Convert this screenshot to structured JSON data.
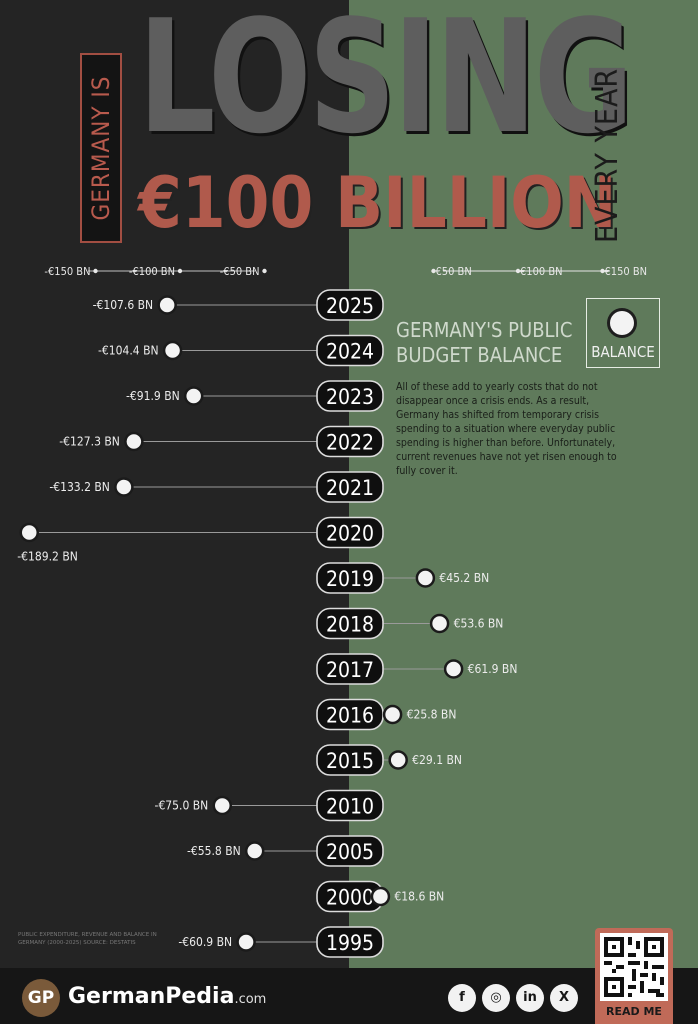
{
  "header": {
    "germany_is": "GERMANY IS",
    "losing": "LOSING",
    "amount": "€100 BILLION",
    "every_year": "EVERY YEAR"
  },
  "panel": {
    "title": "GERMANY'S PUBLIC BUDGET BALANCE",
    "legend_label": "BALANCE",
    "text": "All of these add to yearly costs that do not disappear once a crisis ends. As a result, Germany has shifted from temporary crisis spending to a situation where everyday public spending is higher than before. Unfortunately, current revenues have not yet risen enough to fully cover it."
  },
  "source": {
    "text": "PUBLIC EXPENDITURE, REVENUE AND BALANCE IN GERMANY (2000-2025) SOURCE: DESTATIS"
  },
  "footer": {
    "logo": "GP",
    "brand": "GermanPedia",
    "brand_suffix": ".com",
    "read_me": "READ ME",
    "social": [
      "f",
      "◎",
      "in",
      "X"
    ]
  },
  "colors": {
    "left_bg": "#242424",
    "right_bg": "#5f7a5b",
    "accent_red": "#b05a4c",
    "dot": "#f3f3f3"
  },
  "chart_data": {
    "type": "dot",
    "title": "GERMANY'S PUBLIC BUDGET BALANCE",
    "axis_ticks": [
      -150,
      -100,
      -50,
      50,
      100,
      150
    ],
    "axis_tick_labels": [
      "-€150 BN",
      "-€100 BN",
      "-€50 BN",
      "€50 BN",
      "€100 BN",
      "€150 BN"
    ],
    "unit": "BN",
    "categories": [
      "2025",
      "2024",
      "2023",
      "2022",
      "2021",
      "2020",
      "2019",
      "2018",
      "2017",
      "2016",
      "2015",
      "2010",
      "2005",
      "2000",
      "1995"
    ],
    "values": [
      -107.6,
      -104.4,
      -91.9,
      -127.3,
      -133.2,
      -189.2,
      45.2,
      53.6,
      61.9,
      25.8,
      29.1,
      -75.0,
      -55.8,
      18.6,
      -60.9
    ],
    "value_labels": [
      "-€107.6 BN",
      "-€104.4 BN",
      "-€91.9 BN",
      "-€127.3 BN",
      "-€133.2 BN",
      "-€189.2 BN",
      "€45.2 BN",
      "€53.6 BN",
      "€61.9 BN",
      "€25.8 BN",
      "€29.1 BN",
      "-€75.0 BN",
      "-€55.8 BN",
      "€18.6 BN",
      "-€60.9 BN"
    ],
    "legend": [
      "BALANCE"
    ]
  }
}
